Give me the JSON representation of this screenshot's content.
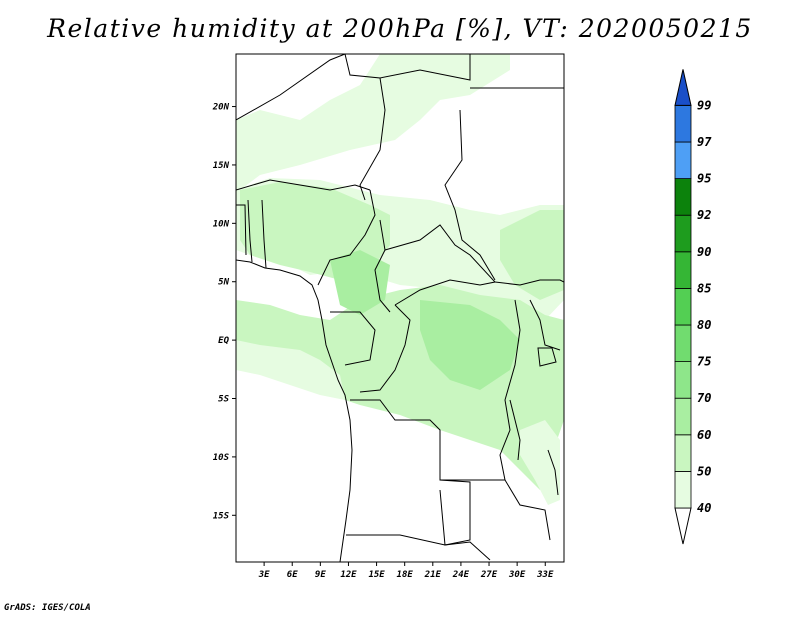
{
  "title": "Relative humidity at 200hPa [%], VT: 2020050215",
  "credit": "GrADS: IGES/COLA",
  "map": {
    "lat_labels": [
      "20N",
      "15N",
      "10N",
      "5N",
      "EQ",
      "5S",
      "10S",
      "15S"
    ],
    "lat_values": [
      20,
      15,
      10,
      5,
      0,
      -5,
      -10,
      -15
    ],
    "lon_labels": [
      "3E",
      "6E",
      "9E",
      "12E",
      "15E",
      "18E",
      "21E",
      "24E",
      "27E",
      "30E",
      "33E"
    ],
    "lon_values": [
      3,
      6,
      9,
      12,
      15,
      18,
      21,
      24,
      27,
      30,
      33
    ],
    "lon_range": [
      0,
      35
    ],
    "lat_range": [
      -19,
      24.5
    ],
    "background": "#ffffff"
  },
  "colorbar": {
    "levels": [
      "40",
      "50",
      "60",
      "70",
      "75",
      "80",
      "85",
      "90",
      "92",
      "95",
      "97",
      "99"
    ],
    "colors": [
      "#ffffff",
      "#e6fce1",
      "#c9f6c0",
      "#a9eea1",
      "#8ee68a",
      "#71dc6f",
      "#53cf53",
      "#35b635",
      "#1e9c1e",
      "#0c820c",
      "#4e9ff5",
      "#2d78e0",
      "#1a4fc8"
    ]
  }
}
